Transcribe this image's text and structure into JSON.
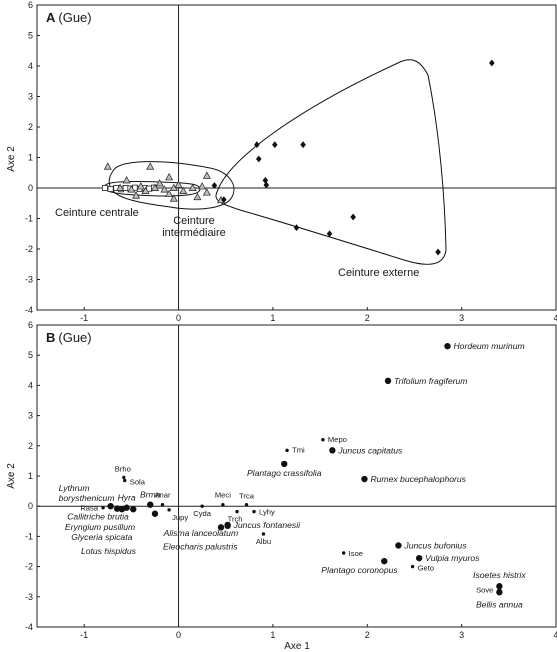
{
  "chart_data": [
    {
      "type": "scatter",
      "panel": "A",
      "title": "(Gue)",
      "xlabel": "",
      "ylabel": "Axe 2",
      "xlim": [
        -1.5,
        4
      ],
      "ylim": [
        -4,
        6
      ],
      "x_ticks": [
        "-1",
        "0",
        "1",
        "2",
        "3",
        "4"
      ],
      "y_ticks": [
        "-4",
        "-3",
        "-2",
        "-1",
        "0",
        "1",
        "2",
        "3",
        "4",
        "5",
        "6"
      ],
      "grid": false,
      "groups": [
        {
          "name": "Ceinture centrale",
          "marker": "square",
          "points": [
            {
              "x": -0.78,
              "y": 0.0
            },
            {
              "x": -0.72,
              "y": -0.03
            },
            {
              "x": -0.66,
              "y": 0.0
            },
            {
              "x": -0.61,
              "y": -0.04
            },
            {
              "x": -0.56,
              "y": 0.0
            },
            {
              "x": -0.51,
              "y": -0.02
            },
            {
              "x": -0.46,
              "y": 0.01
            },
            {
              "x": -0.41,
              "y": -0.03
            },
            {
              "x": -0.36,
              "y": 0.0
            },
            {
              "x": -0.31,
              "y": -0.02
            },
            {
              "x": -0.26,
              "y": 0.01
            }
          ]
        },
        {
          "name": "Ceinture intermédiaire",
          "marker": "triangle",
          "points": [
            {
              "x": -0.62,
              "y": 0.0
            },
            {
              "x": -0.5,
              "y": -0.05
            },
            {
              "x": -0.4,
              "y": 0.05
            },
            {
              "x": -0.35,
              "y": -0.1
            },
            {
              "x": -0.25,
              "y": 0.0
            },
            {
              "x": -0.15,
              "y": -0.05
            },
            {
              "x": -0.05,
              "y": 0.0
            },
            {
              "x": 0.0,
              "y": 0.1
            },
            {
              "x": -0.1,
              "y": -0.2
            },
            {
              "x": 0.05,
              "y": -0.1
            },
            {
              "x": 0.15,
              "y": 0.0
            },
            {
              "x": 0.25,
              "y": 0.05
            },
            {
              "x": 0.3,
              "y": -0.15
            },
            {
              "x": 0.45,
              "y": -0.4
            },
            {
              "x": 0.3,
              "y": 0.4
            },
            {
              "x": -0.75,
              "y": 0.7
            },
            {
              "x": -0.3,
              "y": 0.7
            },
            {
              "x": -0.1,
              "y": 0.35
            },
            {
              "x": -0.55,
              "y": 0.25
            },
            {
              "x": -0.45,
              "y": -0.25
            },
            {
              "x": -0.05,
              "y": -0.35
            },
            {
              "x": 0.2,
              "y": -0.3
            },
            {
              "x": -0.2,
              "y": 0.15
            }
          ]
        },
        {
          "name": "Ceinture externe",
          "marker": "diamond",
          "points": [
            {
              "x": 3.32,
              "y": 4.1
            },
            {
              "x": 0.83,
              "y": 1.42
            },
            {
              "x": 1.02,
              "y": 1.42
            },
            {
              "x": 1.32,
              "y": 1.42
            },
            {
              "x": 0.85,
              "y": 0.95
            },
            {
              "x": 0.92,
              "y": 0.25
            },
            {
              "x": 0.93,
              "y": 0.1
            },
            {
              "x": 0.38,
              "y": 0.08
            },
            {
              "x": 0.48,
              "y": -0.38
            },
            {
              "x": 1.85,
              "y": -0.95
            },
            {
              "x": 1.25,
              "y": -1.3
            },
            {
              "x": 1.6,
              "y": -1.5
            },
            {
              "x": 2.75,
              "y": -2.1
            }
          ]
        }
      ],
      "annotations": [
        "Ceinture centrale",
        "Ceinture intermédiaire",
        "Ceinture externe"
      ]
    },
    {
      "type": "scatter",
      "panel": "B",
      "title": "(Gue)",
      "xlabel": "Axe 1",
      "ylabel": "Axe 2",
      "xlim": [
        -1.5,
        4
      ],
      "ylim": [
        -4,
        6
      ],
      "x_ticks": [
        "-1",
        "0",
        "1",
        "2",
        "3",
        "4"
      ],
      "y_ticks": [
        "-4",
        "-3",
        "-2",
        "-1",
        "0",
        "1",
        "2",
        "3",
        "4",
        "5",
        "6"
      ],
      "grid": false,
      "points": [
        {
          "label": "Hordeum murinum",
          "x": 2.85,
          "y": 5.3,
          "size": "large"
        },
        {
          "label": "Trifolium fragiferum",
          "x": 2.22,
          "y": 4.15,
          "size": "large"
        },
        {
          "label": "Mepo",
          "x": 1.53,
          "y": 2.2,
          "size": "small"
        },
        {
          "label": "Tmi",
          "x": 1.15,
          "y": 1.85,
          "size": "small"
        },
        {
          "label": "Juncus capitatus",
          "x": 1.63,
          "y": 1.85,
          "size": "large"
        },
        {
          "label": "Plantago crassifolia",
          "x": 1.12,
          "y": 1.4,
          "size": "large"
        },
        {
          "label": "Rumex bucephalophorus",
          "x": 1.97,
          "y": 0.9,
          "size": "large"
        },
        {
          "label": "Brho",
          "x": -0.58,
          "y": 0.95,
          "size": "small"
        },
        {
          "label": "Sola",
          "x": -0.57,
          "y": 0.85,
          "size": "small"
        },
        {
          "label": "Lythrum borysthenicum",
          "x": -0.72,
          "y": 0.0,
          "size": "large"
        },
        {
          "label": "Rasa",
          "x": -0.8,
          "y": -0.05,
          "size": "small"
        },
        {
          "label": "Hyra",
          "x": -0.55,
          "y": -0.05,
          "size": "large"
        },
        {
          "label": "Brma",
          "x": -0.3,
          "y": 0.05,
          "size": "large"
        },
        {
          "label": "Anar",
          "x": -0.17,
          "y": 0.05,
          "size": "small"
        },
        {
          "label": "Jupy",
          "x": -0.1,
          "y": -0.12,
          "size": "small"
        },
        {
          "label": "Callitriche brutia",
          "x": -0.65,
          "y": -0.08,
          "size": "large"
        },
        {
          "label": "Eryngium pusillum",
          "x": -0.6,
          "y": -0.1,
          "size": "large"
        },
        {
          "label": "Glyceria spicata",
          "x": -0.48,
          "y": -0.1,
          "size": "large"
        },
        {
          "label": "Lotus hispidus",
          "x": -0.25,
          "y": -0.25,
          "size": "large"
        },
        {
          "label": "Cyda",
          "x": 0.25,
          "y": 0.0,
          "size": "small"
        },
        {
          "label": "Meci",
          "x": 0.47,
          "y": 0.05,
          "size": "small"
        },
        {
          "label": "Trca",
          "x": 0.72,
          "y": 0.05,
          "size": "small"
        },
        {
          "label": "Trch",
          "x": 0.62,
          "y": -0.18,
          "size": "small"
        },
        {
          "label": "Lyhy",
          "x": 0.8,
          "y": -0.18,
          "size": "small"
        },
        {
          "label": "Alisma lanceolatum",
          "x": 0.52,
          "y": -0.65,
          "size": "large"
        },
        {
          "label": "Juncus fontanesii",
          "x": 0.52,
          "y": -0.62,
          "size": "large"
        },
        {
          "label": "Eleocharis palustris",
          "x": 0.45,
          "y": -0.7,
          "size": "large"
        },
        {
          "label": "Albu",
          "x": 0.9,
          "y": -0.92,
          "size": "small"
        },
        {
          "label": "Isoe",
          "x": 1.75,
          "y": -1.55,
          "size": "small"
        },
        {
          "label": "Juncus bufonius",
          "x": 2.33,
          "y": -1.3,
          "size": "large"
        },
        {
          "label": "Vulpia myuros",
          "x": 2.55,
          "y": -1.72,
          "size": "large"
        },
        {
          "label": "Plantago coronopus",
          "x": 2.18,
          "y": -1.82,
          "size": "large"
        },
        {
          "label": "Geto",
          "x": 2.48,
          "y": -2.0,
          "size": "small"
        },
        {
          "label": "Isoetes histrix",
          "x": 3.4,
          "y": -2.65,
          "size": "large"
        },
        {
          "label": "Sove",
          "x": 3.4,
          "y": -2.75,
          "size": "small"
        },
        {
          "label": "Bellis annua",
          "x": 3.4,
          "y": -2.85,
          "size": "large"
        }
      ]
    }
  ]
}
